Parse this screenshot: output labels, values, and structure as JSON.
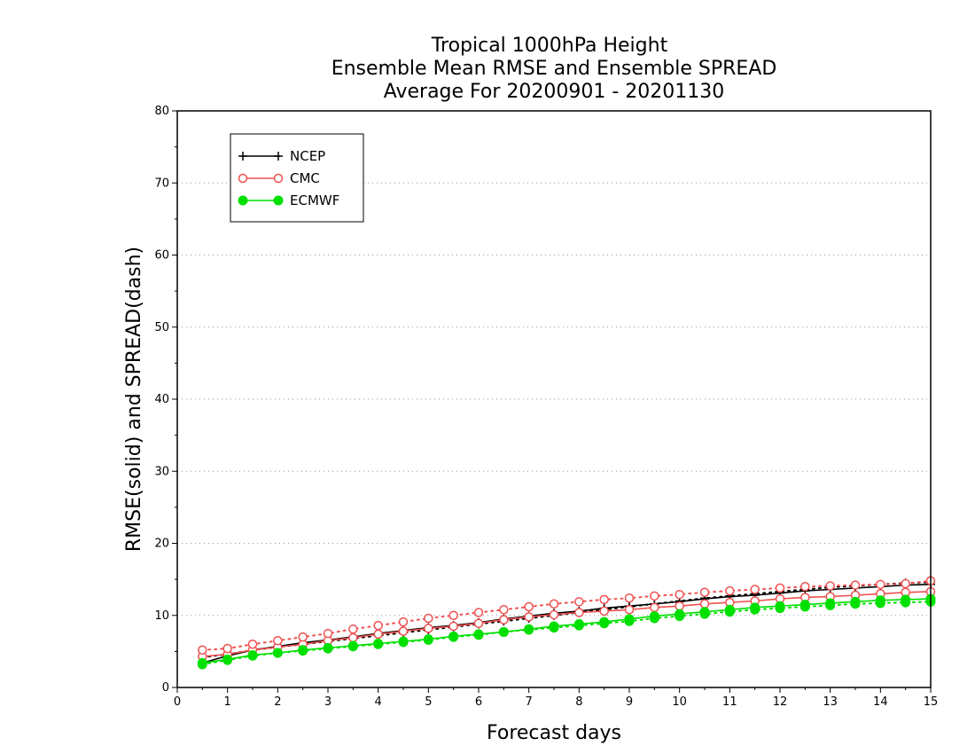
{
  "chart_data": {
    "type": "line",
    "title": [
      "Tropical 1000hPa Height",
      "Ensemble Mean RMSE and Ensemble SPREAD",
      "Average For 20200901 - 20201130"
    ],
    "xlabel": "Forecast days",
    "ylabel": "RMSE(solid) and SPREAD(dash)",
    "xlim": [
      0,
      15
    ],
    "ylim": [
      0,
      80
    ],
    "xticks": [
      0,
      1,
      2,
      3,
      4,
      5,
      6,
      7,
      8,
      9,
      10,
      11,
      12,
      13,
      14,
      15
    ],
    "yticks": [
      0,
      10,
      20,
      30,
      40,
      50,
      60,
      70,
      80
    ],
    "grid": "horizontal dotted",
    "legend_position": "top-left",
    "x": [
      0.5,
      1,
      1.5,
      2,
      2.5,
      3,
      3.5,
      4,
      4.5,
      5,
      5.5,
      6,
      6.5,
      7,
      7.5,
      8,
      8.5,
      9,
      9.5,
      10,
      10.5,
      11,
      11.5,
      12,
      12.5,
      13,
      13.5,
      14,
      14.5,
      15
    ],
    "series": [
      {
        "name": "NCEP",
        "color": "#000000",
        "marker": "plus",
        "rmse": [
          3.4,
          4.4,
          5.2,
          5.7,
          6.2,
          6.6,
          7.0,
          7.5,
          7.9,
          8.3,
          8.6,
          9.0,
          9.5,
          9.9,
          10.3,
          10.6,
          11.0,
          11.3,
          11.6,
          11.9,
          12.3,
          12.6,
          12.8,
          13.1,
          13.4,
          13.6,
          13.8,
          14.0,
          14.2,
          14.3
        ],
        "spread": [
          4.2,
          4.6,
          5.2,
          5.6,
          6.0,
          6.4,
          6.8,
          7.2,
          7.6,
          8.0,
          8.4,
          8.8,
          9.2,
          9.6,
          10.0,
          10.4,
          10.8,
          11.2,
          11.6,
          12.0,
          12.4,
          12.7,
          13.0,
          13.3,
          13.6,
          13.9,
          14.1,
          14.3,
          14.5,
          14.6
        ]
      },
      {
        "name": "CMC",
        "color": "#f05050",
        "marker": "open-circle",
        "rmse": [
          4.3,
          4.6,
          5.2,
          5.6,
          6.0,
          6.5,
          6.9,
          7.4,
          7.8,
          8.2,
          8.5,
          8.9,
          9.4,
          9.8,
          10.1,
          10.4,
          10.6,
          10.8,
          11.1,
          11.3,
          11.6,
          11.8,
          12.0,
          12.3,
          12.5,
          12.6,
          12.8,
          13.0,
          13.2,
          13.3
        ],
        "spread": [
          5.2,
          5.4,
          6.0,
          6.5,
          7.0,
          7.5,
          8.1,
          8.6,
          9.1,
          9.6,
          10.0,
          10.4,
          10.8,
          11.2,
          11.6,
          11.9,
          12.2,
          12.4,
          12.7,
          12.9,
          13.2,
          13.4,
          13.6,
          13.8,
          14.0,
          14.1,
          14.2,
          14.3,
          14.4,
          14.8
        ]
      },
      {
        "name": "ECMWF",
        "color": "#00e000",
        "marker": "filled-circle",
        "rmse": [
          3.4,
          3.9,
          4.5,
          4.8,
          5.2,
          5.5,
          5.8,
          6.1,
          6.4,
          6.7,
          7.1,
          7.4,
          7.7,
          8.1,
          8.5,
          8.8,
          9.1,
          9.5,
          9.9,
          10.2,
          10.5,
          10.8,
          11.1,
          11.3,
          11.5,
          11.7,
          11.9,
          12.1,
          12.2,
          12.3
        ],
        "spread": [
          3.2,
          3.8,
          4.4,
          4.8,
          5.1,
          5.4,
          5.7,
          6.0,
          6.3,
          6.6,
          7.0,
          7.3,
          7.7,
          8.0,
          8.3,
          8.6,
          8.9,
          9.2,
          9.6,
          9.9,
          10.2,
          10.5,
          10.8,
          11.0,
          11.2,
          11.4,
          11.6,
          11.7,
          11.8,
          11.9
        ]
      }
    ]
  }
}
